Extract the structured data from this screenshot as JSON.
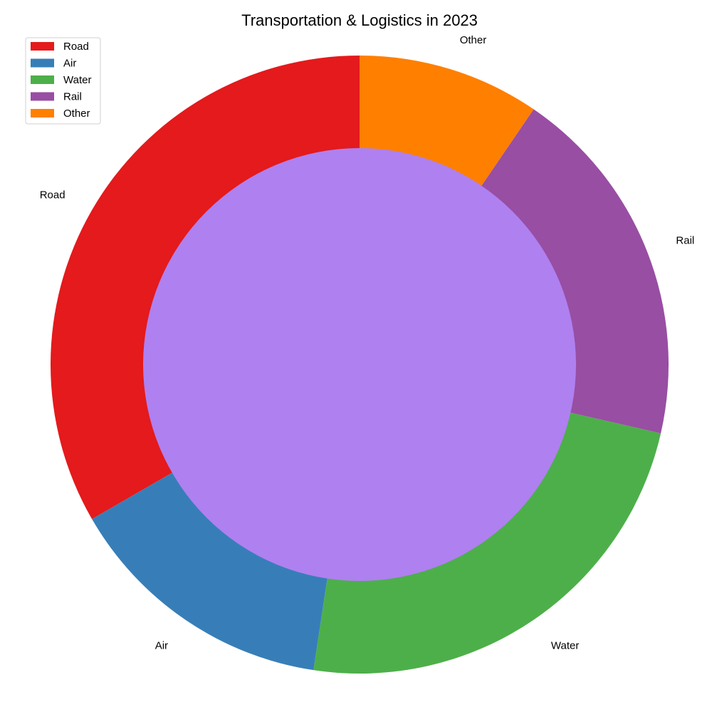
{
  "chart_data": {
    "type": "pie",
    "title": "Transportation & Logistics in 2023",
    "categories": [
      "Road",
      "Air",
      "Water",
      "Rail",
      "Other"
    ],
    "values": [
      35,
      15,
      25,
      20,
      10
    ],
    "colors": [
      "#e41a1c",
      "#377eb8",
      "#4daf4a",
      "#984ea3",
      "#ff7f00"
    ],
    "center_color": "#af80f0",
    "donut": true,
    "start_angle": 90,
    "direction": "counterclockwise",
    "legend_position": "top-left"
  }
}
